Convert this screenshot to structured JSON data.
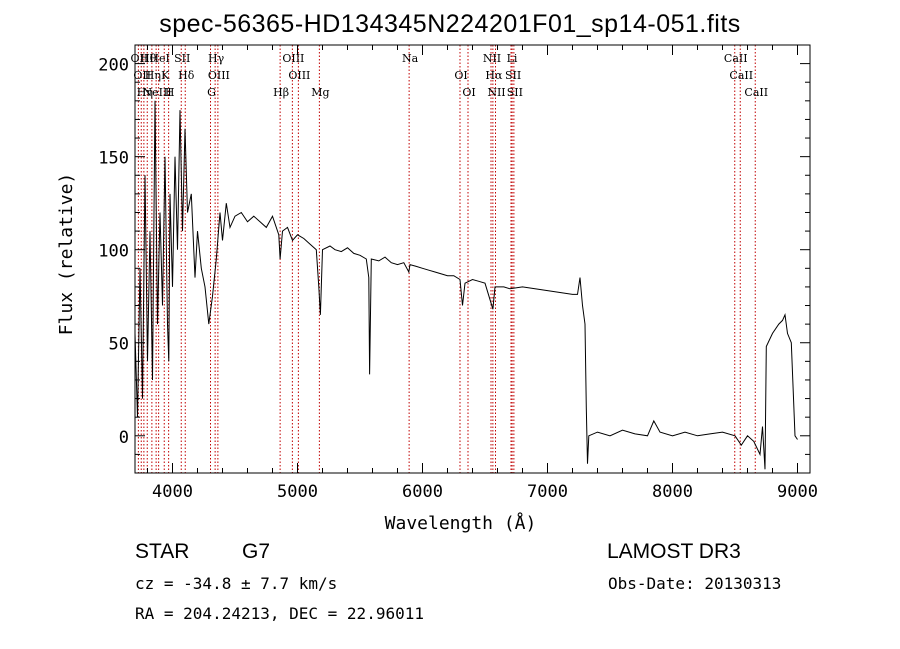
{
  "chart_data": {
    "type": "line",
    "title": "spec-56365-HD134345N224201F01_sp14-051.fits",
    "xlabel": "Wavelength (Å)",
    "ylabel": "Flux (relative)",
    "xlim": [
      3700,
      9100
    ],
    "ylim": [
      -20,
      210
    ],
    "xticks": [
      4000,
      5000,
      6000,
      7000,
      8000,
      9000
    ],
    "yticks": [
      0,
      50,
      100,
      150,
      200
    ],
    "grid": false,
    "series": [
      {
        "name": "flux",
        "points": [
          [
            3700,
            55
          ],
          [
            3720,
            10
          ],
          [
            3740,
            90
          ],
          [
            3760,
            20
          ],
          [
            3780,
            140
          ],
          [
            3800,
            40
          ],
          [
            3820,
            110
          ],
          [
            3840,
            30
          ],
          [
            3860,
            180
          ],
          [
            3880,
            60
          ],
          [
            3900,
            120
          ],
          [
            3920,
            70
          ],
          [
            3940,
            150
          ],
          [
            3960,
            60
          ],
          [
            3970,
            40
          ],
          [
            3980,
            130
          ],
          [
            4000,
            80
          ],
          [
            4020,
            150
          ],
          [
            4040,
            100
          ],
          [
            4060,
            175
          ],
          [
            4080,
            110
          ],
          [
            4100,
            165
          ],
          [
            4120,
            120
          ],
          [
            4150,
            130
          ],
          [
            4180,
            85
          ],
          [
            4200,
            110
          ],
          [
            4230,
            90
          ],
          [
            4260,
            80
          ],
          [
            4290,
            60
          ],
          [
            4320,
            75
          ],
          [
            4350,
            95
          ],
          [
            4380,
            120
          ],
          [
            4400,
            105
          ],
          [
            4430,
            125
          ],
          [
            4460,
            112
          ],
          [
            4500,
            118
          ],
          [
            4550,
            120
          ],
          [
            4600,
            115
          ],
          [
            4650,
            118
          ],
          [
            4700,
            115
          ],
          [
            4750,
            112
          ],
          [
            4800,
            118
          ],
          [
            4850,
            108
          ],
          [
            4861,
            95
          ],
          [
            4880,
            110
          ],
          [
            4920,
            112
          ],
          [
            4960,
            105
          ],
          [
            5000,
            108
          ],
          [
            5050,
            106
          ],
          [
            5100,
            103
          ],
          [
            5150,
            100
          ],
          [
            5170,
            80
          ],
          [
            5183,
            65
          ],
          [
            5200,
            100
          ],
          [
            5260,
            102
          ],
          [
            5300,
            100
          ],
          [
            5350,
            99
          ],
          [
            5400,
            101
          ],
          [
            5450,
            98
          ],
          [
            5500,
            97
          ],
          [
            5550,
            95
          ],
          [
            5570,
            85
          ],
          [
            5577,
            33
          ],
          [
            5590,
            95
          ],
          [
            5650,
            94
          ],
          [
            5700,
            96
          ],
          [
            5750,
            93
          ],
          [
            5800,
            92
          ],
          [
            5850,
            93
          ],
          [
            5890,
            88
          ],
          [
            5900,
            92
          ],
          [
            5950,
            91
          ],
          [
            6000,
            90
          ],
          [
            6050,
            89
          ],
          [
            6100,
            88
          ],
          [
            6150,
            87
          ],
          [
            6200,
            86
          ],
          [
            6250,
            86
          ],
          [
            6300,
            84
          ],
          [
            6320,
            70
          ],
          [
            6340,
            82
          ],
          [
            6400,
            84
          ],
          [
            6450,
            83
          ],
          [
            6500,
            82
          ],
          [
            6563,
            68
          ],
          [
            6580,
            80
          ],
          [
            6650,
            80
          ],
          [
            6700,
            79
          ],
          [
            6800,
            80
          ],
          [
            6900,
            79
          ],
          [
            7000,
            78
          ],
          [
            7100,
            77
          ],
          [
            7200,
            76
          ],
          [
            7240,
            76
          ],
          [
            7260,
            85
          ],
          [
            7280,
            70
          ],
          [
            7300,
            60
          ],
          [
            7310,
            15
          ],
          [
            7320,
            -15
          ],
          [
            7330,
            0
          ],
          [
            7400,
            2
          ],
          [
            7500,
            0
          ],
          [
            7600,
            3
          ],
          [
            7700,
            1
          ],
          [
            7800,
            0
          ],
          [
            7850,
            8
          ],
          [
            7900,
            2
          ],
          [
            8000,
            0
          ],
          [
            8100,
            2
          ],
          [
            8200,
            0
          ],
          [
            8300,
            1
          ],
          [
            8400,
            2
          ],
          [
            8500,
            0
          ],
          [
            8550,
            -5
          ],
          [
            8600,
            0
          ],
          [
            8650,
            -3
          ],
          [
            8700,
            -10
          ],
          [
            8720,
            5
          ],
          [
            8740,
            -18
          ],
          [
            8750,
            48
          ],
          [
            8800,
            55
          ],
          [
            8850,
            60
          ],
          [
            8880,
            62
          ],
          [
            8900,
            65
          ],
          [
            8920,
            55
          ],
          [
            8950,
            50
          ],
          [
            8980,
            0
          ],
          [
            9000,
            -2
          ]
        ]
      }
    ],
    "lines": [
      {
        "wl": 3727,
        "label": "OII"
      },
      {
        "wl": 3750,
        "label": "OII"
      },
      {
        "wl": 3771,
        "label": "Hη"
      },
      {
        "wl": 3798,
        "label": "Hθ"
      },
      {
        "wl": 3835,
        "label": "Hη"
      },
      {
        "wl": 3869,
        "label": "NeIII"
      },
      {
        "wl": 3889,
        "label": "HeI"
      },
      {
        "wl": 3934,
        "label": "K"
      },
      {
        "wl": 3969,
        "label": "H"
      },
      {
        "wl": 4070,
        "label": "SII"
      },
      {
        "wl": 4102,
        "label": "Hδ"
      },
      {
        "wl": 4304,
        "label": "G"
      },
      {
        "wl": 4341,
        "label": "Hγ"
      },
      {
        "wl": 4363,
        "label": "OIII"
      },
      {
        "wl": 4861,
        "label": "Hβ"
      },
      {
        "wl": 4959,
        "label": "OIII"
      },
      {
        "wl": 5007,
        "label": "OIII"
      },
      {
        "wl": 5175,
        "label": "Mg"
      },
      {
        "wl": 5893,
        "label": "Na"
      },
      {
        "wl": 6300,
        "label": "OI"
      },
      {
        "wl": 6364,
        "label": "OI"
      },
      {
        "wl": 6548,
        "label": "NII"
      },
      {
        "wl": 6563,
        "label": "Hα"
      },
      {
        "wl": 6584,
        "label": "NII"
      },
      {
        "wl": 6708,
        "label": "Li"
      },
      {
        "wl": 6717,
        "label": "SII"
      },
      {
        "wl": 6731,
        "label": "SII"
      },
      {
        "wl": 8498,
        "label": "CaII"
      },
      {
        "wl": 8542,
        "label": "CaII"
      },
      {
        "wl": 8662,
        "label": "CaII"
      }
    ]
  },
  "info": {
    "object_class": "STAR",
    "subclass": "G7",
    "survey": "LAMOST DR3",
    "cz": "cz = -34.8 ± 7.7 km/s",
    "obs_date": "Obs-Date: 20130313",
    "coords": "RA = 204.24213, DEC =  22.96011"
  }
}
